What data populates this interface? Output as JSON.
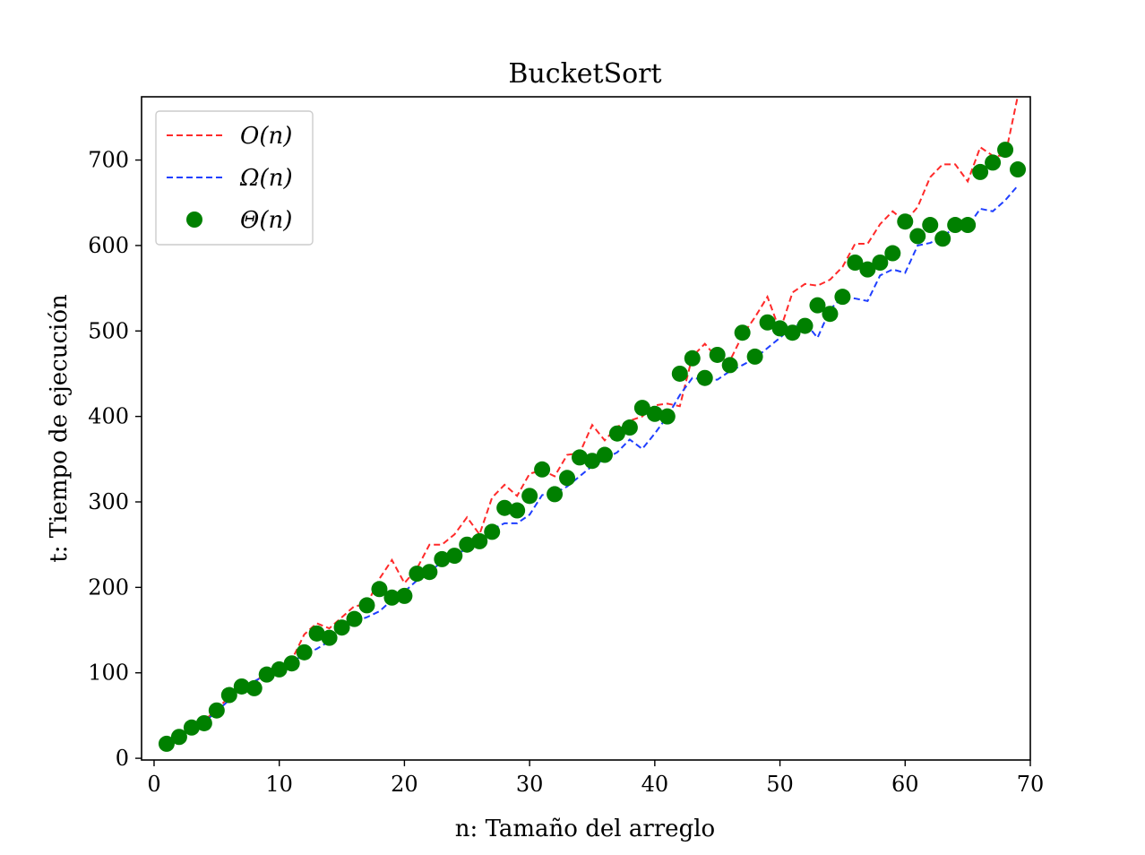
{
  "chart_data": {
    "type": "line",
    "title": "BucketSort",
    "xlabel": "n: Tamaño del arreglo",
    "ylabel": "t: Tiempo de ejecución",
    "xlim": [
      -1,
      70
    ],
    "ylim": [
      -2,
      774
    ],
    "xticks": [
      0,
      10,
      20,
      30,
      40,
      50,
      60,
      70
    ],
    "yticks": [
      0,
      100,
      200,
      300,
      400,
      500,
      600,
      700
    ],
    "grid": false,
    "legend_position": "top-left",
    "series": [
      {
        "name": "O(n)",
        "style": "dashed-line",
        "color": "#ff2a2a",
        "x": [
          1,
          2,
          3,
          4,
          5,
          6,
          7,
          8,
          9,
          10,
          11,
          12,
          13,
          14,
          15,
          16,
          17,
          18,
          19,
          20,
          21,
          22,
          23,
          24,
          25,
          26,
          27,
          28,
          29,
          30,
          31,
          32,
          33,
          34,
          35,
          36,
          37,
          38,
          39,
          40,
          41,
          42,
          43,
          44,
          45,
          46,
          47,
          48,
          49,
          50,
          51,
          52,
          53,
          54,
          55,
          56,
          57,
          58,
          59,
          60,
          61,
          62,
          63,
          64,
          65,
          66,
          67,
          68,
          69
        ],
        "y": [
          18,
          27,
          37,
          44,
          57,
          72,
          80,
          88,
          102,
          108,
          115,
          145,
          158,
          152,
          165,
          178,
          180,
          210,
          232,
          205,
          222,
          250,
          250,
          262,
          282,
          262,
          305,
          320,
          307,
          333,
          337,
          330,
          355,
          357,
          390,
          372,
          388,
          395,
          400,
          413,
          415,
          412,
          470,
          485,
          468,
          465,
          495,
          516,
          540,
          500,
          545,
          555,
          553,
          560,
          575,
          602,
          602,
          625,
          640,
          628,
          645,
          680,
          695,
          695,
          675,
          715,
          705,
          705,
          775
        ]
      },
      {
        "name": "Ω(n)",
        "style": "dashed-line",
        "color": "#1f3fff",
        "x": [
          1,
          2,
          3,
          4,
          5,
          6,
          7,
          8,
          9,
          10,
          11,
          12,
          13,
          14,
          15,
          16,
          17,
          18,
          19,
          20,
          21,
          22,
          23,
          24,
          25,
          26,
          27,
          28,
          29,
          30,
          31,
          32,
          33,
          34,
          35,
          36,
          37,
          38,
          39,
          40,
          41,
          42,
          43,
          44,
          45,
          46,
          47,
          48,
          49,
          50,
          51,
          52,
          53,
          54,
          55,
          56,
          57,
          58,
          59,
          60,
          61,
          62,
          63,
          64,
          65,
          66,
          67,
          68,
          69
        ],
        "y": [
          15,
          25,
          35,
          42,
          55,
          68,
          80,
          90,
          98,
          105,
          112,
          122,
          128,
          137,
          150,
          160,
          165,
          172,
          185,
          195,
          208,
          218,
          230,
          238,
          245,
          255,
          268,
          275,
          275,
          285,
          308,
          310,
          318,
          330,
          342,
          350,
          358,
          373,
          362,
          380,
          400,
          425,
          445,
          443,
          443,
          453,
          460,
          468,
          480,
          492,
          505,
          510,
          492,
          525,
          540,
          538,
          535,
          565,
          572,
          568,
          600,
          603,
          610,
          622,
          622,
          643,
          640,
          653,
          670
        ]
      },
      {
        "name": "Θ(n)",
        "style": "markers",
        "color": "#008000",
        "x": [
          1,
          2,
          3,
          4,
          5,
          6,
          7,
          8,
          9,
          10,
          11,
          12,
          13,
          14,
          15,
          16,
          17,
          18,
          19,
          20,
          21,
          22,
          23,
          24,
          25,
          26,
          27,
          28,
          29,
          30,
          31,
          32,
          33,
          34,
          35,
          36,
          37,
          38,
          39,
          40,
          41,
          42,
          43,
          44,
          45,
          46,
          47,
          48,
          49,
          50,
          51,
          52,
          53,
          54,
          55,
          56,
          57,
          58,
          59,
          60,
          61,
          62,
          63,
          64,
          65,
          66,
          67,
          68,
          69
        ],
        "y": [
          17,
          25,
          36,
          41,
          56,
          74,
          84,
          82,
          98,
          104,
          111,
          124,
          146,
          141,
          153,
          163,
          179,
          198,
          188,
          190,
          216,
          218,
          233,
          237,
          250,
          254,
          265,
          293,
          290,
          307,
          338,
          309,
          328,
          352,
          348,
          355,
          380,
          387,
          410,
          403,
          400,
          450,
          468,
          445,
          472,
          460,
          498,
          470,
          510,
          503,
          498,
          506,
          530,
          520,
          540,
          580,
          572,
          580,
          591,
          628,
          611,
          624,
          608,
          624,
          624,
          686,
          697,
          712,
          689
        ]
      }
    ]
  }
}
